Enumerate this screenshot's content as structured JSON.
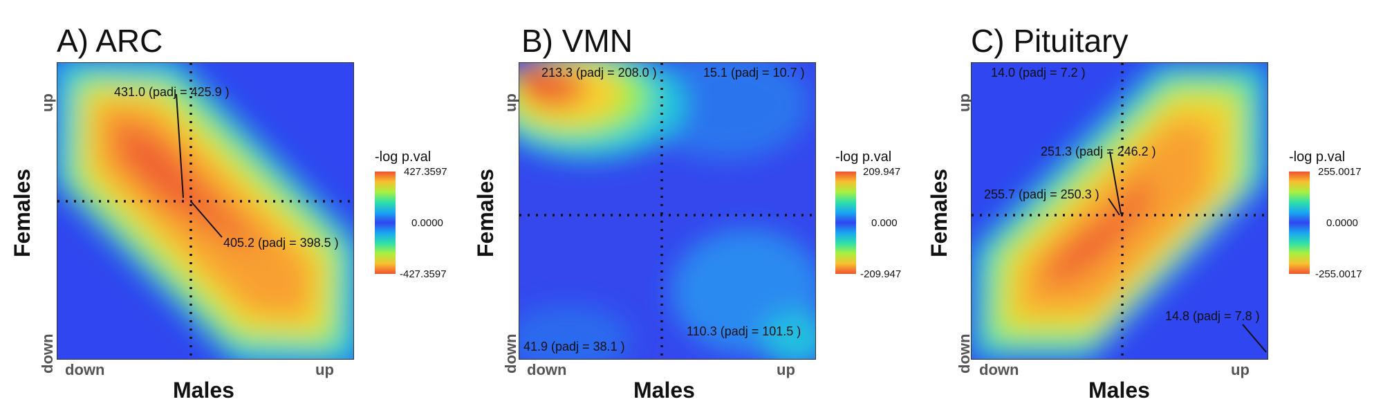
{
  "chart_data": [
    {
      "type": "heatmap",
      "title": "A) ARC",
      "xlabel": "Males",
      "ylabel": "Females",
      "x_ticks": [
        "down",
        "up"
      ],
      "y_ticks": [
        "down",
        "up"
      ],
      "legend": {
        "title": "-log p.val",
        "max": "427.3597",
        "mid": "0.0000",
        "min": "-427.3597",
        "placement": "right"
      },
      "annotations": [
        {
          "text": "431.0 (padj = 425.9 )",
          "quadrant": "top"
        },
        {
          "text": "405.2 (padj = 398.5 )",
          "quadrant": "right"
        }
      ],
      "colors": [
        "#3046f0",
        "#1aa7f0",
        "#2fe0a8",
        "#a8f040",
        "#f8e030",
        "#f8a030",
        "#f05030"
      ]
    },
    {
      "type": "heatmap",
      "title": "B) VMN",
      "xlabel": "Males",
      "ylabel": "Females",
      "x_ticks": [
        "down",
        "up"
      ],
      "y_ticks": [
        "down",
        "up"
      ],
      "legend": {
        "title": "-log p.val",
        "max": "209.947",
        "mid": "0.000",
        "min": "-209.947",
        "placement": "right"
      },
      "annotations": [
        {
          "text": "213.3 (padj = 208.0 )",
          "quadrant": "top-left"
        },
        {
          "text": "15.1 (padj = 10.7 )",
          "quadrant": "top-right"
        },
        {
          "text": "41.9 (padj = 38.1 )",
          "quadrant": "bottom-left"
        },
        {
          "text": "110.3 (padj = 101.5 )",
          "quadrant": "bottom-right"
        }
      ]
    },
    {
      "type": "heatmap",
      "title": "C) Pituitary",
      "xlabel": "Males",
      "ylabel": "Females",
      "x_ticks": [
        "down",
        "up"
      ],
      "y_ticks": [
        "down",
        "up"
      ],
      "legend": {
        "title": "-log p.val",
        "max": "255.0017",
        "mid": "0.0000",
        "min": "-255.0017",
        "placement": "right"
      },
      "annotations": [
        {
          "text": "14.0 (padj = 7.2 )",
          "quadrant": "top-left"
        },
        {
          "text": "251.3 (padj = 246.2 )",
          "quadrant": "center"
        },
        {
          "text": "255.7 (padj = 250.3 )",
          "quadrant": "center-left"
        },
        {
          "text": "14.8 (padj = 7.8 )",
          "quadrant": "bottom-right"
        }
      ]
    }
  ]
}
